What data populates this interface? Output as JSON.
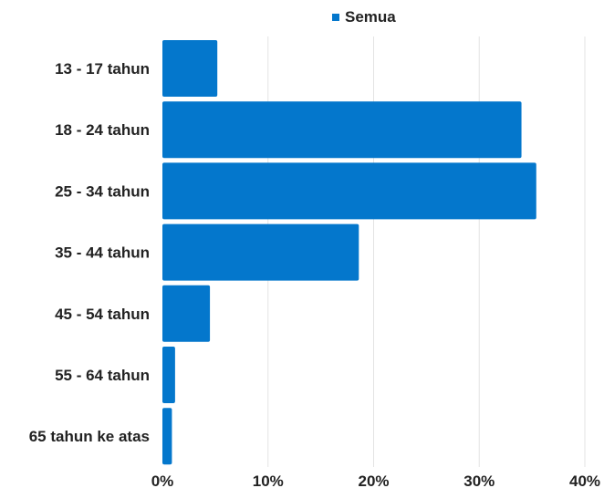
{
  "chart_data": {
    "type": "bar",
    "orientation": "horizontal",
    "categories": [
      "13 - 17 tahun",
      "18 - 24 tahun",
      "25 - 34 tahun",
      "35 - 44 tahun",
      "45 - 54 tahun",
      "55 - 64 tahun",
      "65 tahun ke atas"
    ],
    "series": [
      {
        "name": "Semua",
        "values": [
          5.2,
          34.0,
          35.4,
          18.6,
          4.5,
          1.2,
          0.9
        ]
      }
    ],
    "xlim": [
      0,
      40
    ],
    "xticks": [
      0,
      10,
      20,
      30,
      40
    ],
    "xtick_labels": [
      "0%",
      "10%",
      "20%",
      "30%",
      "40%"
    ],
    "grid": "vertical",
    "legend": "top",
    "colors": {
      "bar": "#0477cc",
      "grid": "#e3e3e3"
    }
  }
}
